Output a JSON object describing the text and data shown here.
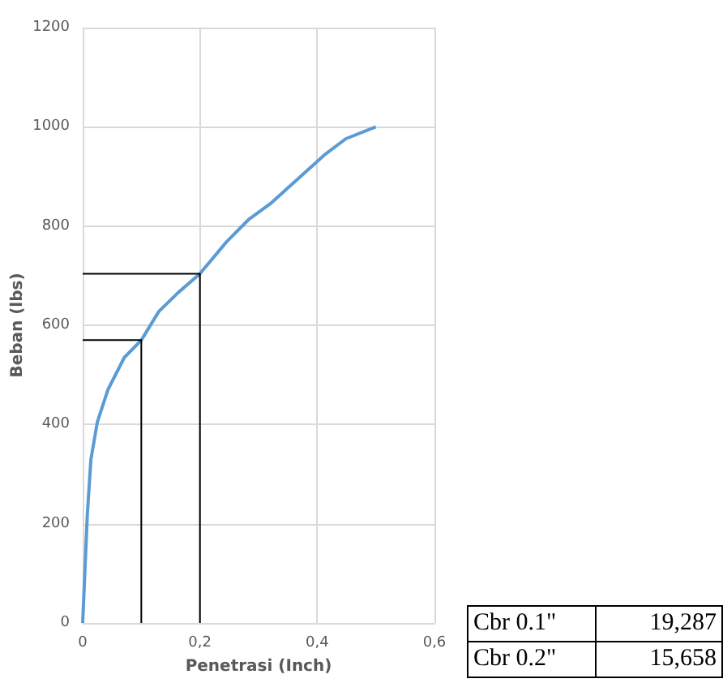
{
  "chart_data": {
    "type": "line",
    "xlabel": "Penetrasi (Inch)",
    "ylabel": "Beban (lbs)",
    "xlim": [
      0,
      0.6
    ],
    "xticks": [
      0,
      {
        "value": 0.2,
        "label": "0,2"
      },
      {
        "value": 0.4,
        "label": "0,4"
      },
      {
        "value": 0.6,
        "label": "0,6"
      }
    ],
    "ylim": [
      0,
      1200
    ],
    "yticks": [
      0,
      200,
      400,
      600,
      800,
      1000,
      1200
    ],
    "grid": true,
    "marker": "none",
    "series": [
      {
        "color": "#5b9bd5",
        "x": [
          0,
          0.004,
          0.008,
          0.014,
          0.025,
          0.043,
          0.071,
          0.1,
          0.13,
          0.163,
          0.2,
          0.246,
          0.283,
          0.32,
          0.366,
          0.412,
          0.449,
          0.5
        ],
        "values": [
          0,
          111,
          220,
          329,
          405,
          470,
          535,
          570,
          628,
          666,
          704,
          769,
          813,
          845,
          894,
          943,
          976,
          1000
        ]
      },
      {
        "color": "#000000",
        "x": [
          0.1,
          0.1,
          0
        ],
        "values": [
          0,
          570,
          570
        ]
      },
      {
        "color": "#000000",
        "x": [
          0.2,
          0.2,
          0
        ],
        "values": [
          0,
          704,
          704
        ]
      }
    ],
    "annotations": [
      "Cbr 0.1\"",
      "19,287",
      "Cbr 0.2\"",
      "15,658"
    ]
  }
}
